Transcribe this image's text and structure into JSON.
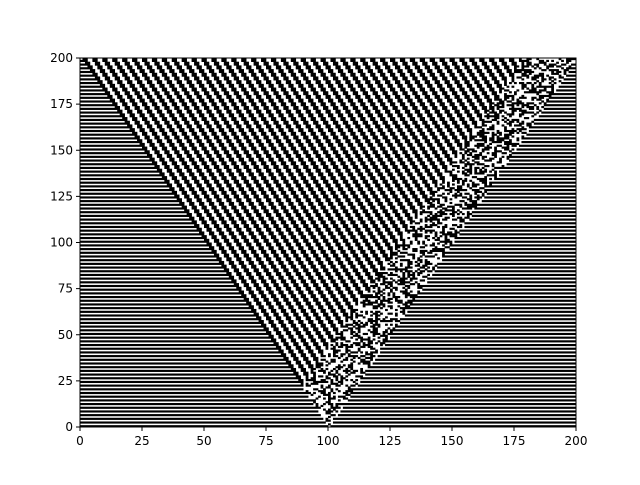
{
  "chart_data": {
    "type": "heatmap",
    "title": "",
    "xlabel": "",
    "ylabel": "",
    "xlim": [
      0,
      200
    ],
    "ylim": [
      0,
      200
    ],
    "x_ticks": [
      "0",
      "25",
      "50",
      "75",
      "100",
      "125",
      "150",
      "175",
      "200"
    ],
    "y_ticks": [
      "0",
      "25",
      "50",
      "75",
      "100",
      "125",
      "150",
      "175",
      "200"
    ],
    "grid": false,
    "colormap": {
      "on": "#000000",
      "off": "#ffffff"
    },
    "grid_cells": [
      200,
      200
    ],
    "apex_x": 100,
    "background_row_period": 2,
    "stripe_period": 4,
    "stripe_slope": 0.5,
    "disorder_band_width": 22
  }
}
